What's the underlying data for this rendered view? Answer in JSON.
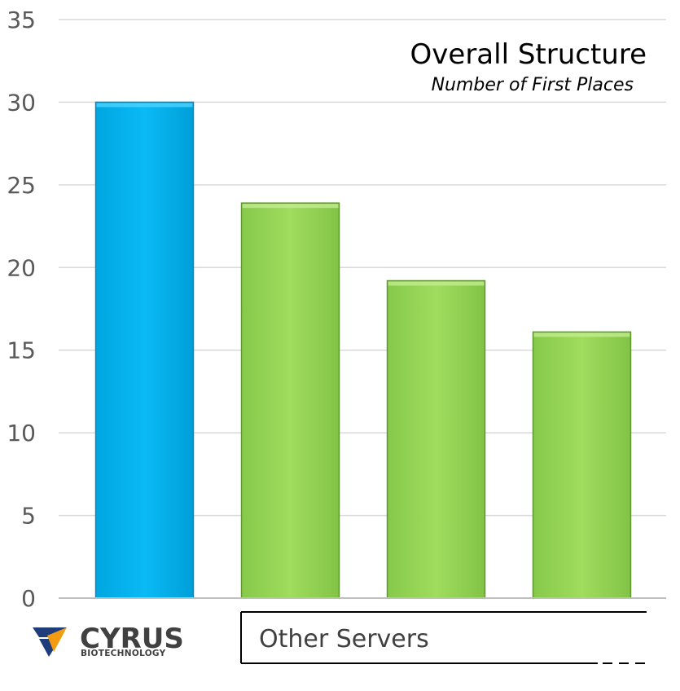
{
  "chart_data": {
    "type": "bar",
    "title": "Overall Structure",
    "subtitle": "Number of First Places",
    "categories": [
      "",
      "",
      "",
      ""
    ],
    "values": [
      30,
      23.9,
      19.2,
      16.1
    ],
    "bar_colors": [
      "#00b6f0",
      "#92d050",
      "#92d050",
      "#92d050"
    ],
    "ylim": [
      0,
      35
    ],
    "yticks": [
      "0",
      "5",
      "10",
      "15",
      "20",
      "25",
      "30",
      "35"
    ],
    "grid": true,
    "xlabel": "",
    "ylabel": ""
  },
  "logo": {
    "name": "CYRUS",
    "tagline": "BIOTECHNOLOGY",
    "colors": {
      "blue": "#1f3d7a",
      "orange": "#f39c12"
    }
  },
  "legend_box": {
    "label": "Other Servers"
  }
}
